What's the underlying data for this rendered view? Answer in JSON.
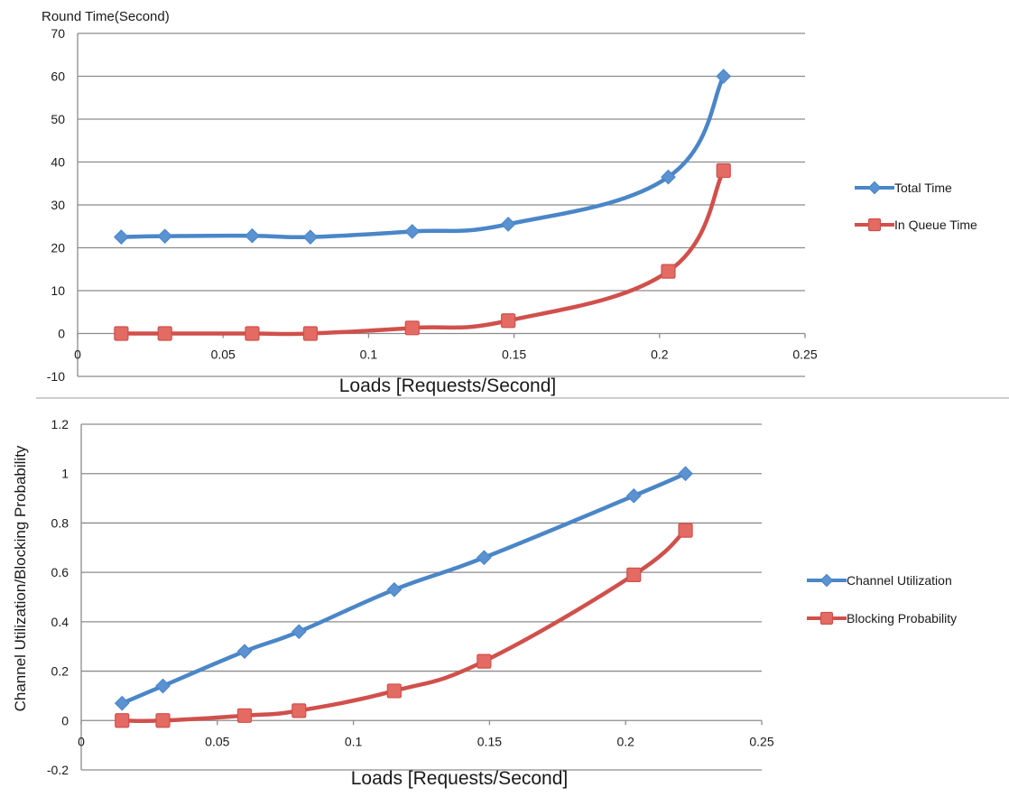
{
  "colors": {
    "series_blue": "#4a86c8",
    "series_red": "#d0504b",
    "marker_blue": "#5b93d2",
    "marker_red": "#e46b63"
  },
  "chart_data": [
    {
      "type": "line",
      "title": "",
      "ylabel": "Round Time(Second)",
      "xlabel": "Loads [Requests/Second]",
      "xlim": [
        0,
        0.25
      ],
      "ylim": [
        -10,
        70
      ],
      "xticks": [
        "0",
        "0.05",
        "0.1",
        "0.15",
        "0.2",
        "0.25"
      ],
      "yticks": [
        "-10",
        "0",
        "10",
        "20",
        "30",
        "40",
        "50",
        "60",
        "70"
      ],
      "grid": true,
      "legend": "right",
      "series": [
        {
          "name": "Total Time",
          "marker": "diamond",
          "color": "#4a86c8",
          "x": [
            0.015,
            0.03,
            0.06,
            0.08,
            0.115,
            0.148,
            0.203,
            0.222
          ],
          "y": [
            22.5,
            22.7,
            22.8,
            22.5,
            23.8,
            25.5,
            36.5,
            60
          ]
        },
        {
          "name": "In Queue Time",
          "marker": "square",
          "color": "#d0504b",
          "x": [
            0.015,
            0.03,
            0.06,
            0.08,
            0.115,
            0.148,
            0.203,
            0.222
          ],
          "y": [
            0,
            0,
            0,
            0,
            1.3,
            3,
            14.5,
            38
          ]
        }
      ]
    },
    {
      "type": "line",
      "title": "",
      "ylabel": "Channel Utilization/Blocking Probability",
      "xlabel": "Loads [Requests/Second]",
      "xlim": [
        0,
        0.25
      ],
      "ylim": [
        -0.2,
        1.2
      ],
      "xticks": [
        "0",
        "0.05",
        "0.1",
        "0.15",
        "0.2",
        "0.25"
      ],
      "yticks": [
        "-0.2",
        "0",
        "0.2",
        "0.4",
        "0.6",
        "0.8",
        "1",
        "1.2"
      ],
      "grid": true,
      "legend": "right",
      "series": [
        {
          "name": "Channel Utilization",
          "marker": "diamond",
          "color": "#4a86c8",
          "x": [
            0.015,
            0.03,
            0.06,
            0.08,
            0.115,
            0.148,
            0.203,
            0.222
          ],
          "y": [
            0.07,
            0.14,
            0.28,
            0.36,
            0.53,
            0.66,
            0.91,
            1.0
          ]
        },
        {
          "name": "Blocking Probability",
          "marker": "square",
          "color": "#d0504b",
          "x": [
            0.015,
            0.03,
            0.06,
            0.08,
            0.115,
            0.148,
            0.203,
            0.222
          ],
          "y": [
            0,
            0,
            0.02,
            0.04,
            0.12,
            0.24,
            0.59,
            0.77
          ]
        }
      ]
    }
  ]
}
